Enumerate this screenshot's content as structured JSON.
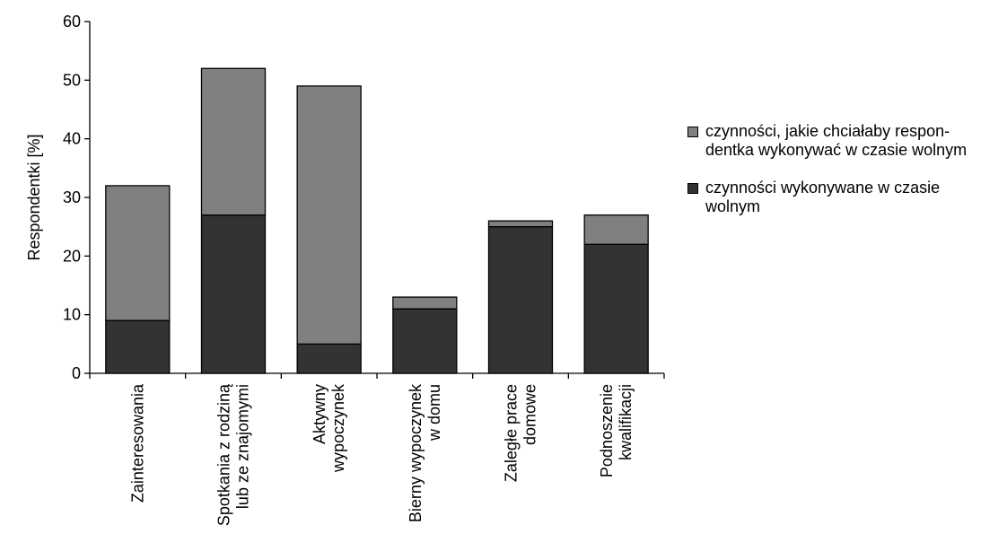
{
  "chart_data": {
    "type": "bar",
    "stacked": true,
    "categories": [
      [
        "Zainteresowania"
      ],
      [
        "Spotkania z rodziną",
        "lub ze znajomymi"
      ],
      [
        "Aktywny",
        "wypoczynek"
      ],
      [
        "Bierny wypoczynek",
        "w domu"
      ],
      [
        "Zaległe prace",
        "domowe"
      ],
      [
        "Podnoszenie",
        "kwalifikacji"
      ]
    ],
    "series": [
      {
        "name": "czynności wykonywane w czasie wolnym",
        "color": "#333333",
        "values": [
          9,
          27,
          5,
          11,
          25,
          22
        ]
      },
      {
        "name": "czynności, jakie chciałaby respondentka wykonywać w czasie wolnym",
        "color": "#808080",
        "values": [
          23,
          25,
          44,
          2,
          1,
          5
        ]
      }
    ],
    "ylabel": "Respondentki [%]",
    "xlabel": "",
    "ylim": [
      0,
      60
    ],
    "yticks": [
      0,
      10,
      20,
      30,
      40,
      50,
      60
    ],
    "grid": false,
    "legend_position": "right"
  },
  "legend": {
    "items": [
      {
        "lines": [
          "czynności, jakie chciałaby respon-",
          "dentka wykonywać w czasie wolnym"
        ],
        "color": "#808080"
      },
      {
        "lines": [
          "czynności wykonywane w czasie",
          "wolnym"
        ],
        "color": "#333333"
      }
    ]
  }
}
